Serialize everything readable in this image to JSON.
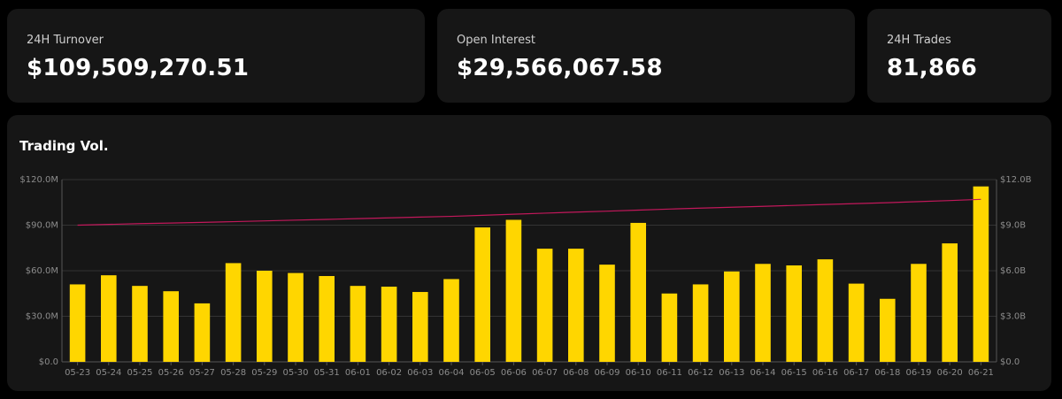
{
  "stats": {
    "turnover": {
      "label": "24H Turnover",
      "value": "$109,509,270.51"
    },
    "open_interest": {
      "label": "Open Interest",
      "value": "$29,566,067.58"
    },
    "trades": {
      "label": "24H Trades",
      "value": "81,866"
    }
  },
  "colors": {
    "bar": "#FFD600",
    "line": "#C2185B",
    "grid": "#333333",
    "axis": "#555555"
  },
  "chart_data": {
    "type": "bar",
    "title": "Trading Vol.",
    "categories": [
      "05-23",
      "05-24",
      "05-25",
      "05-26",
      "05-27",
      "05-28",
      "05-29",
      "05-30",
      "05-31",
      "06-01",
      "06-02",
      "06-03",
      "06-04",
      "06-05",
      "06-06",
      "06-07",
      "06-08",
      "06-09",
      "06-10",
      "06-11",
      "06-12",
      "06-13",
      "06-14",
      "06-15",
      "06-16",
      "06-17",
      "06-18",
      "06-19",
      "06-20",
      "06-21"
    ],
    "series": [
      {
        "axis": "left",
        "kind": "bar",
        "values": [
          51,
          57,
          50,
          46.5,
          38.5,
          65,
          60,
          58.5,
          56.5,
          50,
          49.5,
          46,
          54.5,
          88.5,
          93.5,
          74.5,
          74.5,
          64,
          91.5,
          45,
          51,
          59.5,
          64.5,
          63.5,
          67.5,
          51.5,
          41.5,
          64.5,
          78,
          115.5
        ]
      },
      {
        "axis": "right",
        "kind": "line",
        "values": [
          9.0,
          9.05,
          9.1,
          9.14,
          9.18,
          9.23,
          9.28,
          9.33,
          9.38,
          9.43,
          9.48,
          9.53,
          9.58,
          9.65,
          9.72,
          9.79,
          9.86,
          9.92,
          9.99,
          10.06,
          10.12,
          10.18,
          10.24,
          10.3,
          10.36,
          10.42,
          10.48,
          10.55,
          10.62,
          10.7
        ]
      }
    ],
    "yticks_left": [
      "$0.0",
      "$30.0M",
      "$60.0M",
      "$90.0M",
      "$120.0M"
    ],
    "yticks_right": [
      "$0.0",
      "$3.0B",
      "$6.0B",
      "$9.0B",
      "$12.0B"
    ],
    "ylim_left": [
      0,
      120
    ],
    "ylim_right": [
      0,
      12
    ],
    "grid": true
  }
}
